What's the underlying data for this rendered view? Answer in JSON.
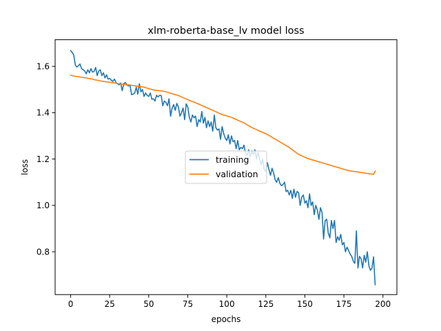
{
  "chart_data": {
    "type": "line",
    "title": "xlm-roberta-base_lv model loss",
    "xlabel": "epochs",
    "ylabel": "loss",
    "xlim": [
      -9.95,
      208.95
    ],
    "ylim": [
      0.6152,
      1.7148
    ],
    "xticks": [
      0,
      25,
      50,
      75,
      100,
      125,
      150,
      175,
      200
    ],
    "yticks": [
      0.8,
      1.0,
      1.2,
      1.4,
      1.6
    ],
    "ytick_labels": [
      "0.8",
      "1.0",
      "1.2",
      "1.4",
      "1.6"
    ],
    "legend_position": "center-right",
    "grid": false,
    "series": [
      {
        "name": "training",
        "color": "#1f77b4",
        "x_start": 0,
        "x_step": 1,
        "values": [
          1.668,
          1.66,
          1.648,
          1.605,
          1.597,
          1.603,
          1.61,
          1.59,
          1.585,
          1.58,
          1.568,
          1.585,
          1.572,
          1.59,
          1.575,
          1.578,
          1.595,
          1.56,
          1.58,
          1.585,
          1.56,
          1.572,
          1.55,
          1.563,
          1.545,
          1.548,
          1.54,
          1.535,
          1.545,
          1.53,
          1.525,
          1.52,
          1.528,
          1.495,
          1.525,
          1.53,
          1.52,
          1.515,
          1.52,
          1.478,
          1.48,
          1.485,
          1.51,
          1.48,
          1.525,
          1.49,
          1.5,
          1.47,
          1.485,
          1.475,
          1.47,
          1.485,
          1.458,
          1.46,
          1.45,
          1.475,
          1.468,
          1.475,
          1.474,
          1.43,
          1.45,
          1.445,
          1.43,
          1.46,
          1.385,
          1.42,
          1.435,
          1.41,
          1.44,
          1.425,
          1.385,
          1.4,
          1.42,
          1.37,
          1.438,
          1.425,
          1.38,
          1.36,
          1.39,
          1.378,
          1.385,
          1.34,
          1.37,
          1.36,
          1.405,
          1.355,
          1.38,
          1.335,
          1.365,
          1.34,
          1.36,
          1.32,
          1.39,
          1.335,
          1.325,
          1.33,
          1.285,
          1.34,
          1.31,
          1.29,
          1.28,
          1.305,
          1.265,
          1.3,
          1.275,
          1.28,
          1.245,
          1.28,
          1.24,
          1.25,
          1.245,
          1.26,
          1.225,
          1.215,
          1.24,
          1.21,
          1.235,
          1.22,
          1.24,
          1.2,
          1.23,
          1.2,
          1.175,
          1.2,
          1.155,
          1.145,
          1.185,
          1.155,
          1.13,
          1.16,
          1.14,
          1.11,
          1.1,
          1.12,
          1.095,
          1.085,
          1.09,
          1.1,
          1.06,
          1.065,
          1.045,
          1.065,
          1.03,
          1.07,
          1.035,
          1.06,
          1.055,
          1.0,
          1.035,
          1.045,
          1.01,
          1.02,
          0.99,
          1.05,
          1.0,
          1.015,
          0.96,
          1.0,
          0.98,
          0.94,
          0.99,
          0.97,
          0.855,
          0.935,
          0.94,
          0.88,
          0.86,
          0.935,
          0.9,
          0.935,
          0.84,
          0.865,
          0.85,
          0.875,
          0.83,
          0.84,
          0.8,
          0.82,
          0.805,
          0.79,
          0.78,
          0.76,
          0.75,
          0.89,
          0.73,
          0.78,
          0.77,
          0.73,
          0.785,
          0.755,
          0.8,
          0.74,
          0.72,
          0.73,
          0.778,
          0.658
        ]
      },
      {
        "name": "validation",
        "color": "#ff7f0e",
        "x_start": 0,
        "x_step": 1,
        "values": [
          1.562,
          1.56,
          1.558,
          1.557,
          1.556,
          1.555,
          1.554,
          1.553,
          1.552,
          1.551,
          1.55,
          1.548,
          1.547,
          1.546,
          1.545,
          1.543,
          1.541,
          1.54,
          1.539,
          1.537,
          1.536,
          1.535,
          1.534,
          1.533,
          1.532,
          1.531,
          1.53,
          1.529,
          1.528,
          1.527,
          1.526,
          1.525,
          1.524,
          1.523,
          1.522,
          1.521,
          1.52,
          1.52,
          1.519,
          1.518,
          1.517,
          1.516,
          1.515,
          1.514,
          1.513,
          1.512,
          1.511,
          1.51,
          1.508,
          1.506,
          1.504,
          1.502,
          1.5,
          1.498,
          1.497,
          1.496,
          1.495,
          1.495,
          1.494,
          1.493,
          1.492,
          1.49,
          1.488,
          1.486,
          1.484,
          1.482,
          1.48,
          1.478,
          1.476,
          1.474,
          1.471,
          1.468,
          1.465,
          1.462,
          1.459,
          1.456,
          1.453,
          1.45,
          1.448,
          1.446,
          1.443,
          1.44,
          1.437,
          1.434,
          1.431,
          1.428,
          1.425,
          1.422,
          1.419,
          1.416,
          1.413,
          1.41,
          1.407,
          1.404,
          1.401,
          1.398,
          1.395,
          1.392,
          1.39,
          1.388,
          1.386,
          1.384,
          1.382,
          1.38,
          1.377,
          1.374,
          1.371,
          1.368,
          1.365,
          1.362,
          1.359,
          1.356,
          1.352,
          1.348,
          1.344,
          1.34,
          1.336,
          1.333,
          1.33,
          1.327,
          1.324,
          1.321,
          1.318,
          1.315,
          1.312,
          1.309,
          1.306,
          1.302,
          1.298,
          1.294,
          1.29,
          1.286,
          1.282,
          1.278,
          1.274,
          1.27,
          1.266,
          1.262,
          1.258,
          1.254,
          1.25,
          1.245,
          1.24,
          1.235,
          1.23,
          1.225,
          1.22,
          1.217,
          1.214,
          1.211,
          1.208,
          1.205,
          1.202,
          1.2,
          1.198,
          1.196,
          1.194,
          1.192,
          1.19,
          1.188,
          1.186,
          1.184,
          1.182,
          1.18,
          1.178,
          1.176,
          1.174,
          1.172,
          1.17,
          1.168,
          1.166,
          1.164,
          1.162,
          1.16,
          1.158,
          1.156,
          1.154,
          1.152,
          1.15,
          1.149,
          1.148,
          1.147,
          1.146,
          1.145,
          1.144,
          1.143,
          1.142,
          1.141,
          1.14,
          1.139,
          1.138,
          1.137,
          1.136,
          1.135,
          1.134,
          1.148
        ]
      }
    ]
  }
}
